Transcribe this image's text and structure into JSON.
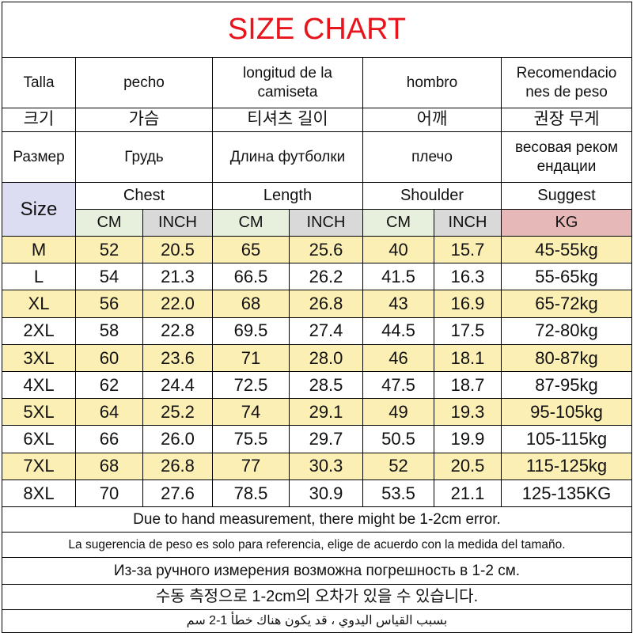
{
  "title": "SIZE CHART",
  "headers": {
    "spanish": [
      "Talla",
      "pecho",
      "longitud de la\ncamiseta",
      "hombro",
      "Recomendacio\nnes de peso"
    ],
    "korean": [
      "크기",
      "가슴",
      "티셔츠 길이",
      "어깨",
      "권장 무게"
    ],
    "russian": [
      "Размер",
      "Грудь",
      "Длина футболки",
      "плечо",
      "весовая реком\nендации"
    ]
  },
  "size_label": "Size",
  "groups": [
    "Chest",
    "Length",
    "Shoulder",
    "Suggest"
  ],
  "units": [
    "CM",
    "INCH",
    "CM",
    "INCH",
    "CM",
    "INCH",
    "KG"
  ],
  "rows": [
    [
      "M",
      "52",
      "20.5",
      "65",
      "25.6",
      "40",
      "15.7",
      "45-55kg"
    ],
    [
      "L",
      "54",
      "21.3",
      "66.5",
      "26.2",
      "41.5",
      "16.3",
      "55-65kg"
    ],
    [
      "XL",
      "56",
      "22.0",
      "68",
      "26.8",
      "43",
      "16.9",
      "65-72kg"
    ],
    [
      "2XL",
      "58",
      "22.8",
      "69.5",
      "27.4",
      "44.5",
      "17.5",
      "72-80kg"
    ],
    [
      "3XL",
      "60",
      "23.6",
      "71",
      "28.0",
      "46",
      "18.1",
      "80-87kg"
    ],
    [
      "4XL",
      "62",
      "24.4",
      "72.5",
      "28.5",
      "47.5",
      "18.7",
      "87-95kg"
    ],
    [
      "5XL",
      "64",
      "25.2",
      "74",
      "29.1",
      "49",
      "19.3",
      "95-105kg"
    ],
    [
      "6XL",
      "66",
      "26.0",
      "75.5",
      "29.7",
      "50.5",
      "19.9",
      "105-115kg"
    ],
    [
      "7XL",
      "68",
      "26.8",
      "77",
      "30.3",
      "52",
      "20.5",
      "115-125kg"
    ],
    [
      "8XL",
      "70",
      "27.6",
      "78.5",
      "30.9",
      "53.5",
      "21.1",
      "125-135KG"
    ]
  ],
  "notes": [
    "Due to hand measurement, there might be 1-2cm error.",
    "La sugerencia de peso es solo para referencia, elige de acuerdo con la medida del tamaño.",
    "Из-за ручного измерения возможна погрешность в 1-2 см.",
    "수동 측정으로 1-2cm의 오차가 있을 수 있습니다.",
    "بسبب القياس اليدوي ، قد يكون هناك خطأ 1-2 سم"
  ]
}
